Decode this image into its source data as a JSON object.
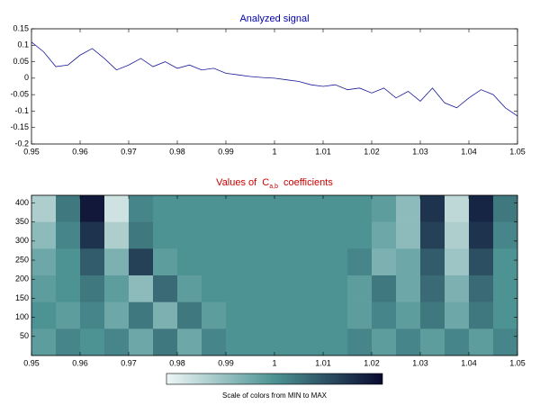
{
  "chart_data": [
    {
      "type": "line",
      "title": "Analyzed signal",
      "title_color": "#0000aa",
      "color": "#1a1a9a",
      "x": [
        0.95,
        0.9525,
        0.955,
        0.9575,
        0.96,
        0.9625,
        0.965,
        0.9675,
        0.97,
        0.9725,
        0.975,
        0.9775,
        0.98,
        0.9825,
        0.985,
        0.9875,
        0.99,
        0.9925,
        0.995,
        0.9975,
        1.0,
        1.0025,
        1.005,
        1.0075,
        1.01,
        1.0125,
        1.015,
        1.0175,
        1.02,
        1.0225,
        1.025,
        1.0275,
        1.03,
        1.0325,
        1.035,
        1.0375,
        1.04,
        1.0425,
        1.045,
        1.0475,
        1.05
      ],
      "values": [
        0.11,
        0.08,
        0.035,
        0.04,
        0.07,
        0.09,
        0.06,
        0.025,
        0.04,
        0.06,
        0.035,
        0.05,
        0.03,
        0.04,
        0.025,
        0.03,
        0.015,
        0.01,
        0.005,
        0.002,
        0,
        -0.005,
        -0.01,
        -0.02,
        -0.025,
        -0.02,
        -0.035,
        -0.03,
        -0.045,
        -0.03,
        -0.06,
        -0.04,
        -0.07,
        -0.03,
        -0.075,
        -0.09,
        -0.06,
        -0.035,
        -0.05,
        -0.09,
        -0.115
      ],
      "xlim": [
        0.95,
        1.05
      ],
      "xticks": [
        0.95,
        0.96,
        0.97,
        0.98,
        0.99,
        1,
        1.01,
        1.02,
        1.03,
        1.04,
        1.05
      ],
      "ylim": [
        -0.2,
        0.15
      ],
      "yticks": [
        0.15,
        0.1,
        0.05,
        0,
        -0.05,
        -0.1,
        -0.15,
        -0.2
      ]
    },
    {
      "type": "heatmap",
      "title": "Values of",
      "title_symbol": "C",
      "title_subscript": "a,b",
      "title_end": "coefficients",
      "title_color": "#cc0000",
      "x": [
        0.9525,
        0.9575,
        0.9625,
        0.9675,
        0.9725,
        0.9775,
        0.9825,
        0.9875,
        0.9925,
        0.9975,
        1.0025,
        1.0075,
        1.0125,
        1.0175,
        1.0225,
        1.0275,
        1.0325,
        1.0375,
        1.0425,
        1.0475
      ],
      "y": [
        385,
        315,
        245,
        175,
        105,
        35
      ],
      "z": [
        [
          0.2,
          0.6,
          0.95,
          0.1,
          0.55,
          0.5,
          0.5,
          0.5,
          0.5,
          0.5,
          0.5,
          0.5,
          0.5,
          0.5,
          0.45,
          0.3,
          0.85,
          0.15,
          0.9,
          0.6
        ],
        [
          0.3,
          0.55,
          0.85,
          0.2,
          0.6,
          0.5,
          0.5,
          0.5,
          0.5,
          0.5,
          0.5,
          0.5,
          0.5,
          0.5,
          0.4,
          0.3,
          0.8,
          0.2,
          0.85,
          0.55
        ],
        [
          0.4,
          0.5,
          0.7,
          0.35,
          0.8,
          0.45,
          0.5,
          0.5,
          0.5,
          0.5,
          0.5,
          0.5,
          0.5,
          0.55,
          0.35,
          0.4,
          0.7,
          0.25,
          0.75,
          0.5
        ],
        [
          0.45,
          0.5,
          0.6,
          0.45,
          0.3,
          0.65,
          0.45,
          0.5,
          0.5,
          0.5,
          0.5,
          0.5,
          0.5,
          0.45,
          0.6,
          0.4,
          0.65,
          0.35,
          0.65,
          0.5
        ],
        [
          0.5,
          0.45,
          0.55,
          0.4,
          0.6,
          0.35,
          0.6,
          0.45,
          0.5,
          0.5,
          0.5,
          0.5,
          0.5,
          0.45,
          0.55,
          0.45,
          0.6,
          0.4,
          0.6,
          0.5
        ],
        [
          0.45,
          0.55,
          0.5,
          0.55,
          0.4,
          0.6,
          0.4,
          0.55,
          0.5,
          0.5,
          0.5,
          0.5,
          0.5,
          0.55,
          0.45,
          0.55,
          0.45,
          0.55,
          0.45,
          0.55
        ]
      ],
      "colormap": [
        "#eef6f6",
        "#4d9393",
        "#0a0a30"
      ],
      "colorbar_label": "Scale of colors from MIN to MAX",
      "xlim": [
        0.95,
        1.05
      ],
      "xticks": [
        0.95,
        0.96,
        0.97,
        0.98,
        0.99,
        1,
        1.01,
        1.02,
        1.03,
        1.04,
        1.05
      ],
      "ylim": [
        0,
        420
      ],
      "yticks": [
        50,
        100,
        150,
        200,
        250,
        300,
        350,
        400
      ]
    }
  ]
}
